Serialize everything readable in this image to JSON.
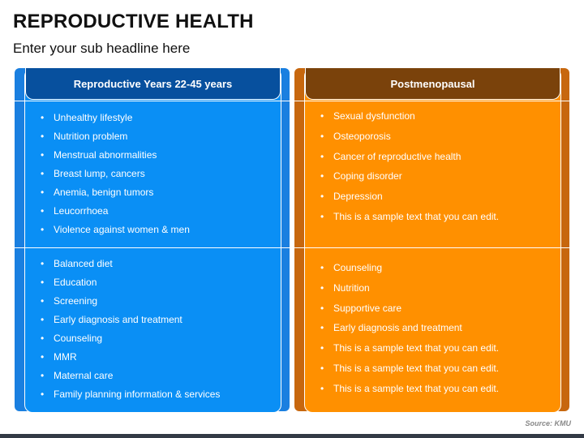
{
  "title": "REPRODUCTIVE HEALTH",
  "subtitle": "Enter your sub headline here",
  "columns": [
    {
      "header": "Reproductive Years 22-45 years",
      "problems": [
        "Unhealthy lifestyle",
        "Nutrition problem",
        "Menstrual abnormalities",
        "Breast lump, cancers",
        "Anemia, benign tumors",
        "Leucorrhoea",
        "Violence against women & men"
      ],
      "care": [
        "Balanced diet",
        "Education",
        "Screening",
        "Early diagnosis and treatment",
        "Counseling",
        "MMR",
        "Maternal care",
        "Family planning information & services"
      ]
    },
    {
      "header": "Postmenopausal",
      "problems": [
        "Sexual dysfunction",
        "Osteoporosis",
        "Cancer of reproductive health",
        "Coping disorder",
        "Depression",
        "This is a sample text that you can edit."
      ],
      "care": [
        "Counseling",
        "Nutrition",
        "Supportive care",
        "Early diagnosis and treatment",
        "This is a sample text that you can edit.",
        "This is a sample text that you can edit.",
        "This is a sample text that you can edit."
      ]
    }
  ],
  "source": "Source: KMU",
  "colors": {
    "blue_outer": "#1a7fe0",
    "blue_inner": "#0a8ff5",
    "blue_header": "#07509e",
    "orange_outer": "#c7670e",
    "orange_inner": "#ff9000",
    "orange_header": "#7a420b"
  }
}
